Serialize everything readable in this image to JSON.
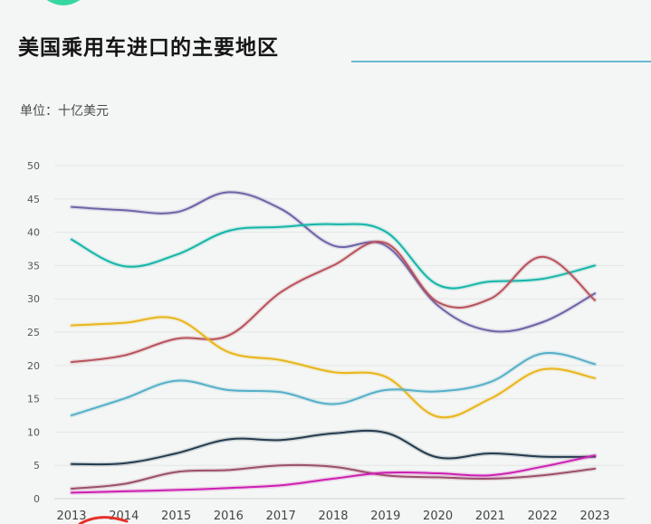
{
  "title": "美国乘用车进口的主要地区",
  "unit_label": "单位：十亿美元",
  "colors": {
    "background": "#f4f6f5",
    "title": "#151515",
    "title_rule": "#69b8d2",
    "axis_text": "#555555",
    "gridline": "#e3e6e5"
  },
  "chart_data": {
    "type": "line",
    "x": [
      2013,
      2014,
      2015,
      2016,
      2017,
      2018,
      2019,
      2020,
      2021,
      2022,
      2023
    ],
    "ylim": [
      0,
      50
    ],
    "yticks": [
      0,
      5,
      10,
      15,
      20,
      25,
      30,
      35,
      40,
      45,
      50
    ],
    "grid": true,
    "legend": "none",
    "series": [
      {
        "color": "#6f63a8",
        "values": [
          43.8,
          43.3,
          43.0,
          46.0,
          43.5,
          38.0,
          38.0,
          29.0,
          25.2,
          26.5,
          30.8
        ]
      },
      {
        "color": "#14b5a9",
        "values": [
          38.9,
          34.9,
          36.6,
          40.2,
          40.8,
          41.2,
          40.1,
          32.1,
          32.6,
          33.0,
          35.0
        ]
      },
      {
        "color": "#b8525c",
        "values": [
          20.5,
          21.5,
          24.0,
          24.5,
          31.0,
          35.0,
          38.4,
          29.5,
          30.0,
          36.3,
          29.8
        ]
      },
      {
        "color": "#e8b51a",
        "values": [
          26.0,
          26.4,
          27.0,
          22.0,
          20.8,
          19.0,
          18.3,
          12.3,
          15.0,
          19.4,
          18.1
        ]
      },
      {
        "color": "#55afc8",
        "values": [
          12.5,
          15.0,
          17.7,
          16.3,
          16.0,
          14.2,
          16.3,
          16.1,
          17.5,
          21.8,
          20.2
        ]
      },
      {
        "color": "#233b4e",
        "values": [
          5.2,
          5.3,
          6.8,
          8.9,
          8.8,
          9.8,
          9.9,
          6.2,
          6.8,
          6.3,
          6.3
        ]
      },
      {
        "color": "#9b4f6c",
        "values": [
          1.5,
          2.2,
          4.0,
          4.3,
          5.0,
          4.8,
          3.5,
          3.2,
          3.0,
          3.5,
          4.5
        ]
      },
      {
        "color": "#cc1fb2",
        "values": [
          0.9,
          1.1,
          1.3,
          1.6,
          2.0,
          3.0,
          3.9,
          3.8,
          3.5,
          4.8,
          6.5
        ]
      }
    ]
  }
}
